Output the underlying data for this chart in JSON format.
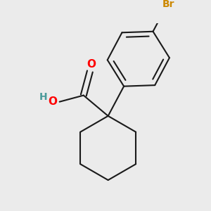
{
  "bg_color": "#ebebeb",
  "bond_color": "#1a1a1a",
  "bond_width": 1.5,
  "O_color": "#ff0000",
  "H_color": "#4a9a9a",
  "Br_color": "#cc8800",
  "font_size": 10,
  "fig_width": 3.0,
  "fig_height": 3.0,
  "dpi": 100,
  "xlim": [
    -1.8,
    1.8
  ],
  "ylim": [
    -1.8,
    1.8
  ]
}
